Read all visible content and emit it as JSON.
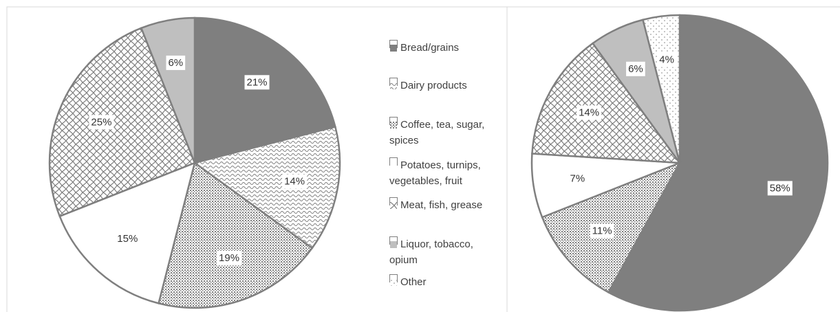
{
  "chart_data": {
    "type": "pie",
    "categories": [
      "Bread/grains",
      "Dairy products",
      "Coffee, tea, sugar, spices",
      "Potatoes, turnips, vegetables, fruit",
      "Meat, fish, grease",
      "Liquor, tobacco, opium",
      "Other"
    ],
    "series": [
      {
        "values": [
          21,
          14,
          19,
          15,
          25,
          6,
          null
        ],
        "value_labels": [
          "21%",
          "14%",
          "19%",
          "15%",
          "25%",
          "6%",
          null
        ]
      },
      {
        "values": [
          58,
          null,
          11,
          7,
          14,
          6,
          4
        ],
        "value_labels": [
          "58%",
          null,
          "11%",
          "7%",
          "14%",
          "6%",
          "4%"
        ]
      }
    ]
  }
}
